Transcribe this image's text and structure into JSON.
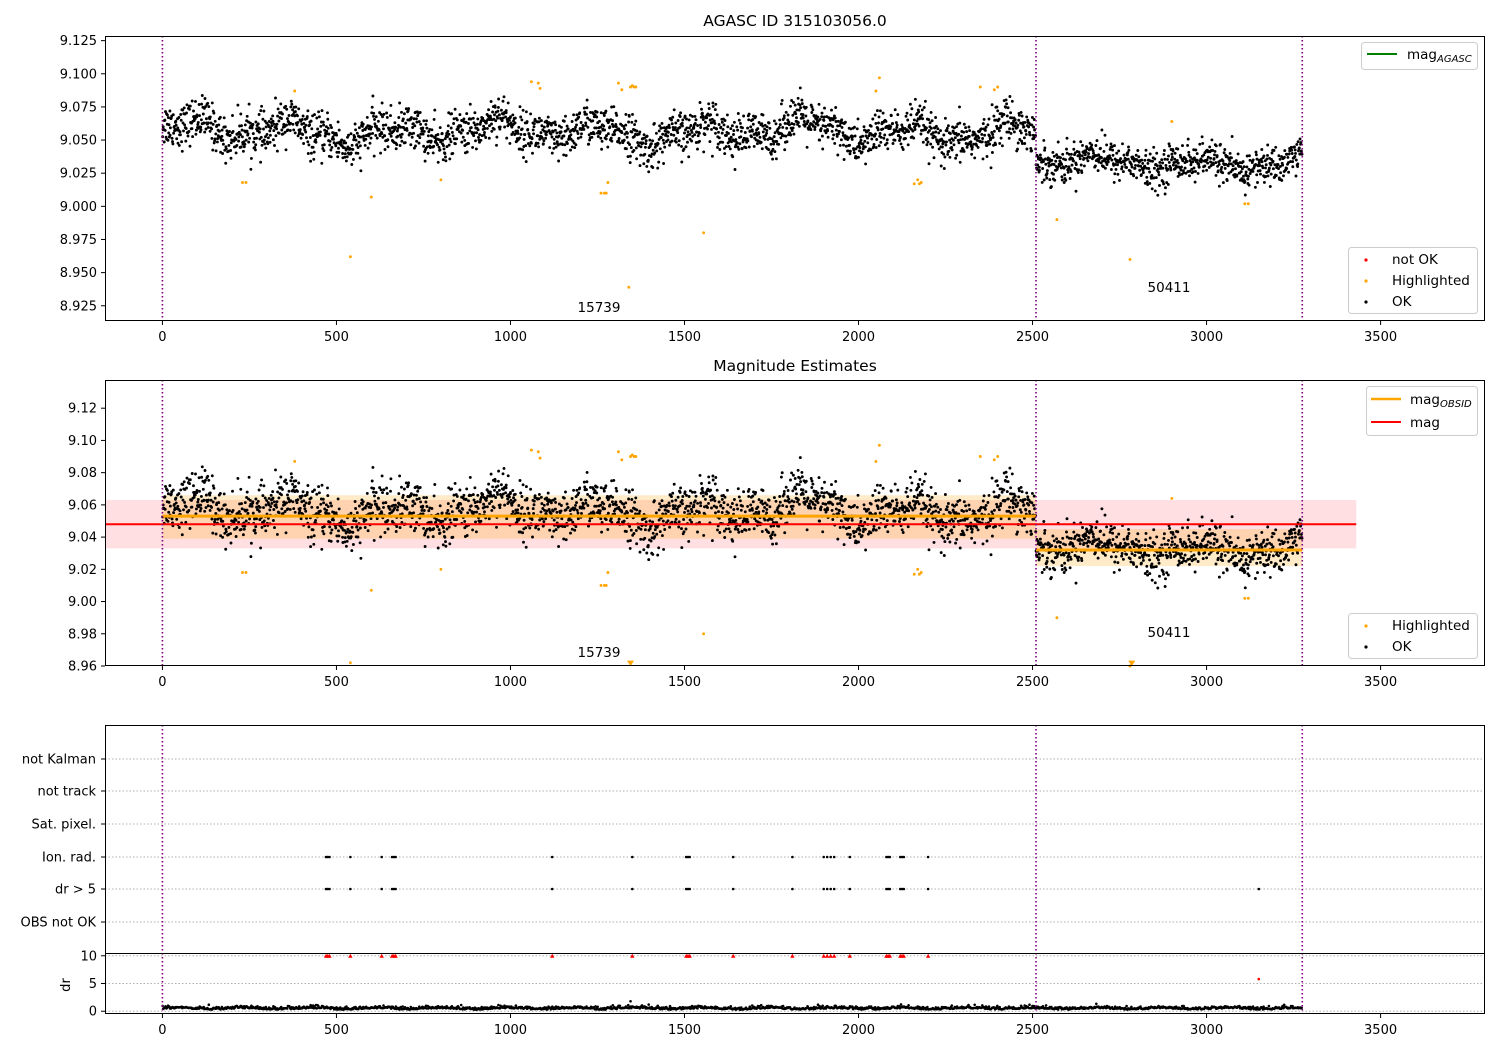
{
  "figure": {
    "panels": [
      {
        "title": "AGASC ID 315103056.0",
        "annotations": [
          "15739",
          "50411"
        ]
      },
      {
        "title": "Magnitude Estimates",
        "annotations": [
          "15739",
          "50411"
        ]
      },
      {
        "title": ""
      }
    ]
  },
  "chart_data": [
    {
      "type": "scatter",
      "title": "AGASC ID 315103056.0",
      "xlabel": "",
      "ylabel": "",
      "xlim": [
        -165,
        3800
      ],
      "ylim": [
        8.9135,
        9.1285
      ],
      "x_ticks": [
        "0",
        "500",
        "1000",
        "1500",
        "2000",
        "2500",
        "3000",
        "3500"
      ],
      "y_ticks": [
        "9.125",
        "9.100",
        "9.075",
        "9.050",
        "9.025",
        "9.000",
        "8.975",
        "8.950",
        "8.925"
      ],
      "vlines": [
        0,
        2510,
        3275
      ],
      "annotations": [
        {
          "text": "15739",
          "x": 1255,
          "y": 8.921
        },
        {
          "text": "50411",
          "x": 2885,
          "y": 8.936
        }
      ],
      "legend_upper": {
        "loc": "upper right",
        "entries": [
          {
            "label": "mag",
            "sub": "AGASC",
            "color": "#008000"
          }
        ]
      },
      "legend_lower": {
        "loc": "lower right",
        "entries": [
          {
            "label": "not OK",
            "color": "#ff0000"
          },
          {
            "label": "Highlighted",
            "color": "#ffa500"
          },
          {
            "label": "OK",
            "color": "#000000"
          }
        ]
      },
      "ok_points": {
        "color": "#000000",
        "segments": [
          {
            "x_start": 0,
            "x_end": 2510,
            "count": 2300,
            "level": 9.056,
            "std": 0.008,
            "wave": 0.012
          },
          {
            "x_start": 2510,
            "x_end": 3275,
            "count": 700,
            "level": 9.033,
            "std": 0.007,
            "wave": 0.008
          }
        ]
      },
      "highlighted_points": {
        "color": "#ffa500",
        "x": [
          230,
          240,
          380,
          540,
          600,
          800,
          1060,
          1080,
          1085,
          1260,
          1270,
          1275,
          1280,
          1310,
          1320,
          1340,
          1345,
          1350,
          1355,
          1360,
          1555,
          2050,
          2060,
          2160,
          2170,
          2175,
          2180,
          2350,
          2390,
          2400,
          2570,
          2780,
          2900,
          3110,
          3120
        ],
        "y": [
          9.018,
          9.018,
          9.087,
          8.962,
          9.007,
          9.02,
          9.094,
          9.093,
          9.089,
          9.01,
          9.01,
          9.01,
          9.018,
          9.093,
          9.088,
          8.939,
          9.09,
          9.091,
          9.09,
          9.09,
          8.98,
          9.087,
          9.097,
          9.017,
          9.02,
          9.017,
          9.018,
          9.09,
          9.088,
          9.09,
          8.99,
          8.96,
          9.064,
          9.002,
          9.002
        ]
      },
      "not_ok_points": {
        "color": "#ff0000",
        "x": [],
        "y": []
      },
      "mag_agasc_line": {
        "color": "#008000",
        "value": null
      }
    },
    {
      "type": "scatter",
      "title": "Magnitude Estimates",
      "xlabel": "",
      "ylabel": "",
      "xlim": [
        -165,
        3800
      ],
      "ylim": [
        8.96,
        9.1375
      ],
      "x_ticks": [
        "0",
        "500",
        "1000",
        "1500",
        "2000",
        "2500",
        "3000",
        "3500"
      ],
      "y_ticks": [
        "9.12",
        "9.10",
        "9.08",
        "9.06",
        "9.04",
        "9.02",
        "9.00",
        "8.98",
        "8.96"
      ],
      "vlines": [
        0,
        2510,
        3275
      ],
      "annotations": [
        {
          "text": "15739",
          "x": 1255,
          "y": 8.966
        },
        {
          "text": "50411",
          "x": 2885,
          "y": 8.978
        }
      ],
      "legend_upper": {
        "loc": "upper right",
        "entries": [
          {
            "label": "mag",
            "sub": "OBSID",
            "color": "#ffa500"
          },
          {
            "label": "mag",
            "sub": "",
            "color": "#ff0000"
          }
        ]
      },
      "legend_lower": {
        "loc": "lower right",
        "entries": [
          {
            "label": "Highlighted",
            "color": "#ffa500"
          },
          {
            "label": "OK",
            "color": "#000000"
          }
        ]
      },
      "mag": {
        "value": 9.048,
        "band": [
          9.033,
          9.063
        ],
        "x_range": [
          -165,
          3430
        ],
        "color": "#ff0000",
        "band_color": "#ff8c96"
      },
      "mag_obsid": [
        {
          "x_start": 0,
          "x_end": 2510,
          "value": 9.053,
          "band": [
            9.039,
            9.066
          ]
        },
        {
          "x_start": 2510,
          "x_end": 3275,
          "value": 9.032,
          "band": [
            9.022,
            9.045
          ]
        }
      ],
      "mag_obsid_color": "#ffa500",
      "ok_points": {
        "color": "#000000",
        "same_as_panel": 1
      },
      "highlighted_points": {
        "color": "#ffa500",
        "same_as_panel": 1
      },
      "clipped_markers": {
        "color": "#ffa500",
        "x": [
          1345,
          2785
        ],
        "y": [
          8.9615,
          8.9615
        ]
      }
    },
    {
      "type": "scatter",
      "title": "",
      "xlabel": "",
      "ylabel": "",
      "xlim": [
        -165,
        3800
      ],
      "x_ticks": [
        "0",
        "500",
        "1000",
        "1500",
        "2000",
        "2500",
        "3000",
        "3500"
      ],
      "vlines": [
        0,
        2510,
        3275
      ],
      "flag_rows": [
        "not Kalman",
        "not track",
        "Sat. pixel.",
        "Ion. rad.",
        "dr > 5",
        "OBS not OK"
      ],
      "flag_points": {
        "Ion. rad.": [
          470,
          475,
          480,
          540,
          630,
          660,
          665,
          670,
          1120,
          1350,
          1505,
          1510,
          1515,
          1640,
          1810,
          1900,
          1910,
          1920,
          1930,
          1975,
          2080,
          2085,
          2090,
          2120,
          2125,
          2130,
          2200
        ],
        "dr > 5": [
          470,
          475,
          480,
          540,
          630,
          660,
          665,
          670,
          1120,
          1350,
          1505,
          1510,
          1515,
          1640,
          1810,
          1900,
          1910,
          1920,
          1930,
          1975,
          2080,
          2085,
          2090,
          2120,
          2125,
          2130,
          2200,
          3150
        ]
      },
      "dr_panel": {
        "ylabel": "dr",
        "ylim": [
          -0.5,
          10.5
        ],
        "y_ticks": [
          "10",
          "5",
          "0"
        ],
        "baseline": 0.4,
        "capped_markers": {
          "color": "#ff0000",
          "value": 10,
          "x": [
            470,
            475,
            480,
            540,
            630,
            660,
            665,
            670,
            1120,
            1350,
            1505,
            1510,
            1515,
            1640,
            1810,
            1900,
            1910,
            1920,
            1930,
            1975,
            2080,
            2085,
            2090,
            2120,
            2125,
            2130,
            2200
          ]
        },
        "outliers": [
          {
            "x": 3150,
            "y": 5.8,
            "color": "#ff0000"
          },
          {
            "x": 1345,
            "y": 1.8,
            "color": "#000000"
          }
        ]
      }
    }
  ]
}
